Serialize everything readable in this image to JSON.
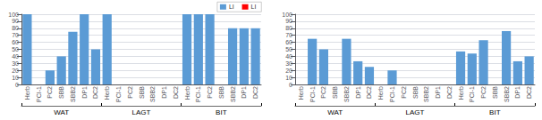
{
  "chart_data": [
    {
      "type": "bar",
      "categories": [
        "Herb",
        "PCI-1",
        "PC2",
        "SBB",
        "SBB2",
        "DP1",
        "DC2",
        "Herb",
        "PCI-1",
        "PC2",
        "SBB",
        "SBB2",
        "DP1",
        "DC2",
        "Herb",
        "PCI-1",
        "PC2",
        "SBB",
        "SBB2",
        "DP1",
        "DC2"
      ],
      "groups": [
        "WAT",
        "LAGT",
        "BIT"
      ],
      "series": [
        {
          "name": "LI",
          "color": "#5B9BD5",
          "values": [
            100,
            0,
            20,
            40,
            75,
            100,
            50,
            100,
            0,
            0,
            0,
            0,
            0,
            0,
            100,
            100,
            100,
            0,
            80,
            80,
            80
          ]
        },
        {
          "name": "LI",
          "color": "#FF0000",
          "values": [
            null,
            null,
            null,
            null,
            null,
            null,
            null,
            null,
            null,
            null,
            null,
            null,
            null,
            null,
            null,
            null,
            null,
            null,
            null,
            null,
            null
          ]
        }
      ],
      "ylim": [
        0,
        100
      ],
      "yticks": [
        0,
        10,
        20,
        30,
        40,
        50,
        60,
        70,
        80,
        90,
        100
      ],
      "grid": true,
      "legend": "upper right"
    },
    {
      "type": "bar",
      "categories": [
        "Herb",
        "PCI-1",
        "PC2",
        "SBB",
        "SBB2",
        "DP1",
        "DC2",
        "Herb",
        "PCI-1",
        "PC2",
        "SBB",
        "SBB2",
        "DP1",
        "DC2",
        "Herb",
        "PCI-1",
        "PC2",
        "SBB",
        "SBB2",
        "DP1",
        "DC2"
      ],
      "groups": [
        "WAT",
        "LAGT",
        "BIT"
      ],
      "series": [
        {
          "name": "LI",
          "color": "#5B9BD5",
          "values": [
            0,
            65,
            50,
            0,
            65,
            33,
            25,
            0,
            20,
            0,
            0,
            0,
            0,
            0,
            47,
            44,
            63,
            0,
            76,
            33,
            40
          ]
        }
      ],
      "ylim": [
        0,
        100
      ],
      "yticks": [
        0,
        10,
        20,
        30,
        40,
        50,
        60,
        70,
        80,
        90,
        100
      ],
      "grid": true
    }
  ]
}
